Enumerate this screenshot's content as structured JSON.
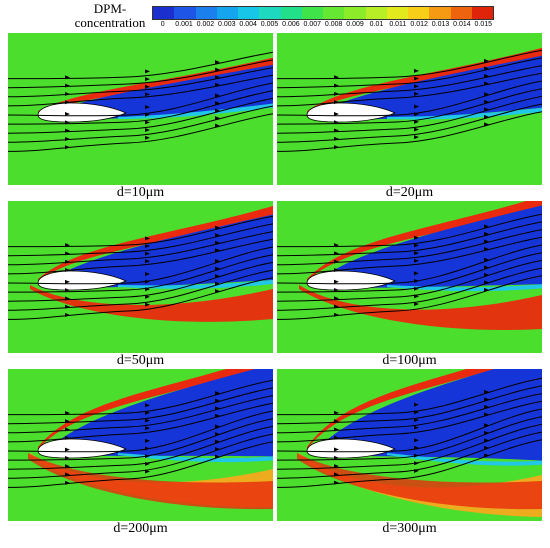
{
  "legend": {
    "title_lines": [
      "DPM-",
      "concentration"
    ],
    "ticks": [
      "0",
      "0.001",
      "0.002",
      "0.003",
      "0.004",
      "0.005",
      "0.006",
      "0.007",
      "0.008",
      "0.009",
      "0.01",
      "0.011",
      "0.012",
      "0.013",
      "0.014",
      "0.015"
    ],
    "colors": [
      "#1b2fcf",
      "#1f55e6",
      "#1c7fee",
      "#14a5ee",
      "#18c6e8",
      "#1ed8c0",
      "#22e08a",
      "#3ee44a",
      "#66e832",
      "#8cec2a",
      "#b8ee26",
      "#e2ea1e",
      "#f7cf18",
      "#f59a12",
      "#ee640e",
      "#e0240a"
    ]
  },
  "panels": [
    {
      "caption": "d=10μm",
      "level": 1
    },
    {
      "caption": "d=20μm",
      "level": 2
    },
    {
      "caption": "d=50μm",
      "level": 3
    },
    {
      "caption": "d=100μm",
      "level": 4
    },
    {
      "caption": "d=200μm",
      "level": 5
    },
    {
      "caption": "d=300μm",
      "level": 6
    }
  ],
  "colors": {
    "background_field": "#4bde2c",
    "low": "#1535d8",
    "high": "#ea2a0e",
    "mid": "#f2d21e",
    "airfoil": "#ffffff",
    "streamline": "#000000"
  }
}
